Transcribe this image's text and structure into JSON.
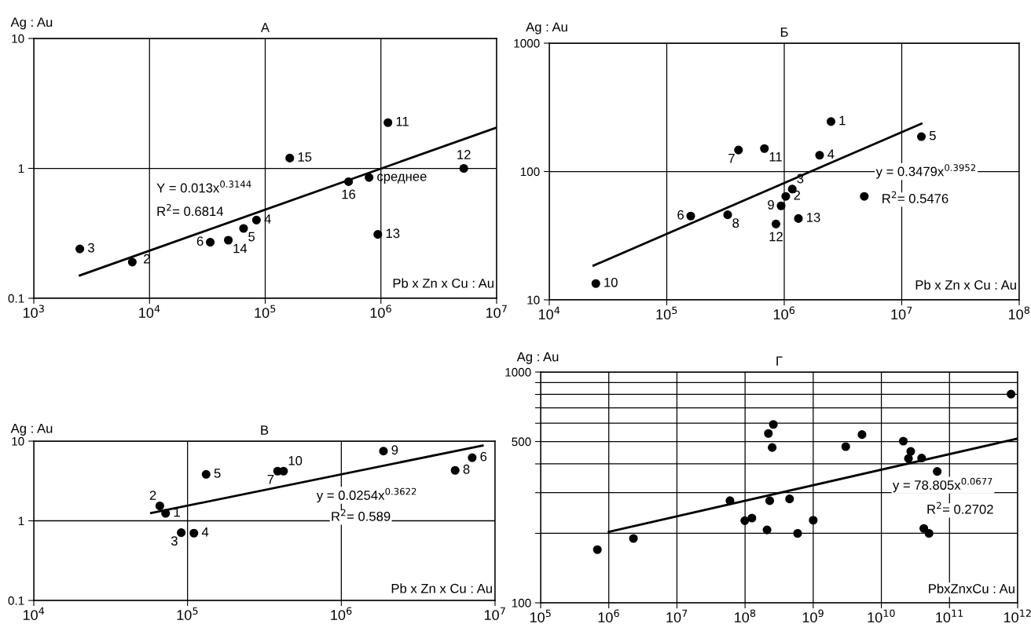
{
  "chart_data": [
    {
      "type": "scatter",
      "title": "А",
      "xlabel": "Pb x Zn x Cu : Au",
      "ylabel": "Ag : Au",
      "log": "xy",
      "grid": true,
      "xlim": [
        1000,
        10000000
      ],
      "xticks": [
        {
          "value": 1000,
          "label": "10$^{3}$"
        },
        {
          "value": 10000,
          "label": "10$^{4}$"
        },
        {
          "value": 100000,
          "label": "10$^{5}$"
        },
        {
          "value": 1000000,
          "label": "10$^{6}$"
        },
        {
          "value": 10000000,
          "label": "10$^{7}$"
        }
      ],
      "ylim": [
        0.1,
        10
      ],
      "yticks": [
        0.1,
        1,
        10
      ],
      "series": [
        {
          "type": "scatter",
          "marker": "circle",
          "color": "#000000",
          "x": [
            2500,
            7100,
            33500,
            48000,
            65000,
            84000,
            163000,
            525000,
            790000,
            940000,
            1150000,
            5200000
          ],
          "values": [
            0.24,
            0.19,
            0.27,
            0.28,
            0.345,
            0.4,
            1.2,
            0.79,
            0.85,
            0.31,
            2.25,
            1.0
          ]
        },
        {
          "type": "line",
          "color": "#000000",
          "x": [
            2500,
            10000000
          ],
          "values": [
            0.15,
            2.06
          ]
        }
      ],
      "annotations": [
        {
          "text": "3",
          "x": 2500,
          "y": 0.24
        },
        {
          "text": "2",
          "x": 7100,
          "y": 0.19
        },
        {
          "text": "6",
          "x": 33500,
          "y": 0.27
        },
        {
          "text": "14",
          "x": 48000,
          "y": 0.28
        },
        {
          "text": "5",
          "x": 65000,
          "y": 0.345
        },
        {
          "text": "4",
          "x": 84000,
          "y": 0.4
        },
        {
          "text": "15",
          "x": 163000,
          "y": 1.2
        },
        {
          "text": "16",
          "x": 525000,
          "y": 0.79
        },
        {
          "text": "среднее",
          "x": 790000,
          "y": 0.85
        },
        {
          "text": "13",
          "x": 940000,
          "y": 0.31
        },
        {
          "text": "11",
          "x": 1150000,
          "y": 2.25
        },
        {
          "text": "12",
          "x": 5200000,
          "y": 1.0
        },
        "Y = 0.013x$^{0.3144}$",
        "R$^{2}$= 0.6814"
      ]
    },
    {
      "type": "scatter",
      "title": "Б",
      "xlabel": "Pb x Zn x Cu : Au",
      "ylabel": "Ag : Au",
      "log": "xy",
      "grid": true,
      "xlim": [
        10000,
        100000000
      ],
      "xticks": [
        {
          "value": 10000,
          "label": "10$^{4}$"
        },
        {
          "value": 100000,
          "label": "10$^{5}$"
        },
        {
          "value": 1000000,
          "label": "10$^{6}$"
        },
        {
          "value": 10000000,
          "label": "10$^{7}$"
        },
        {
          "value": 100000000,
          "label": "10$^{8}$"
        }
      ],
      "ylim": [
        10,
        1000
      ],
      "yticks": [
        10,
        100,
        1000
      ],
      "series": [
        {
          "type": "scatter",
          "marker": "circle",
          "color": "#000000",
          "x": [
            2500000,
            14700000,
            408000,
            678000,
            2000000,
            1170000,
            4800000,
            1030000,
            940000,
            160000,
            330000,
            850000,
            1320000,
            24900
          ],
          "values": [
            245,
            187,
            147,
            151,
            134,
            73,
            64,
            64,
            54,
            45,
            46,
            39,
            43,
            13.4
          ]
        },
        {
          "type": "line",
          "color": "#000000",
          "x": [
            23800,
            14700000
          ],
          "values": [
            18.5,
            236
          ]
        }
      ],
      "annotations": [
        {
          "text": "1",
          "x": 2500000,
          "y": 245
        },
        {
          "text": "5",
          "x": 14700000,
          "y": 187
        },
        {
          "text": "7",
          "x": 408000,
          "y": 147
        },
        {
          "text": "11",
          "x": 678000,
          "y": 151
        },
        {
          "text": "4",
          "x": 2000000,
          "y": 134
        },
        {
          "text": "3",
          "x": 1170000,
          "y": 73
        },
        {
          "text": "2",
          "x": 1030000,
          "y": 64
        },
        {
          "text": "9",
          "x": 940000,
          "y": 54
        },
        {
          "text": "6",
          "x": 160000,
          "y": 45
        },
        {
          "text": "8",
          "x": 330000,
          "y": 46
        },
        {
          "text": "12",
          "x": 850000,
          "y": 39
        },
        {
          "text": "13",
          "x": 1320000,
          "y": 43
        },
        {
          "text": "10",
          "x": 24900,
          "y": 13.4
        },
        "y = 0.3479x$^{0.3952}$",
        "R$^{2}$= 0.5476"
      ]
    },
    {
      "type": "scatter",
      "title": "В",
      "xlabel": "Pb x Zn x Cu : Au",
      "ylabel": "Ag : Au",
      "log": "xy",
      "grid": true,
      "xlim": [
        10000,
        10000000
      ],
      "xticks": [
        {
          "value": 10000,
          "label": "10$^{4}$"
        },
        {
          "value": 100000,
          "label": "10$^{5}$"
        },
        {
          "value": 1000000,
          "label": "10$^{6}$"
        },
        {
          "value": 10000000,
          "label": "10$^{7}$"
        }
      ],
      "ylim": [
        0.1,
        10
      ],
      "yticks": [
        0.1,
        1,
        10
      ],
      "series": [
        {
          "type": "scatter",
          "marker": "circle",
          "color": "#000000",
          "x": [
            66000,
            72000,
            91000,
            110000,
            132000,
            385000,
            421000,
            1880000,
            5500000,
            7100000
          ],
          "values": [
            1.54,
            1.24,
            0.71,
            0.7,
            3.83,
            4.2,
            4.2,
            7.5,
            4.3,
            6.2
          ]
        },
        {
          "type": "line",
          "color": "#000000",
          "x": [
            58000,
            8300000
          ],
          "values": [
            1.25,
            8.8
          ]
        }
      ],
      "annotations": [
        {
          "text": "2",
          "x": 66000,
          "y": 1.54
        },
        {
          "text": "1",
          "x": 72000,
          "y": 1.24
        },
        {
          "text": "3",
          "x": 91000,
          "y": 0.71
        },
        {
          "text": "4",
          "x": 110000,
          "y": 0.7
        },
        {
          "text": "5",
          "x": 132000,
          "y": 3.83
        },
        {
          "text": "7",
          "x": 385000,
          "y": 4.2
        },
        {
          "text": "10",
          "x": 421000,
          "y": 4.2
        },
        {
          "text": "9",
          "x": 1880000,
          "y": 7.5
        },
        {
          "text": "8",
          "x": 5500000,
          "y": 4.3
        },
        {
          "text": "6",
          "x": 7100000,
          "y": 6.2
        },
        "y = 0.0254x$^{0.3622}$",
        "R$^{2}$= 0.589"
      ]
    },
    {
      "type": "scatter",
      "title": "Г",
      "xlabel": "PbxZnxCu : Au",
      "ylabel": "Ag : Au",
      "log": "xy",
      "grid": true,
      "xlim": [
        100000,
        1000000000000
      ],
      "xticks": [
        {
          "value": 100000,
          "label": "10$^{5}$"
        },
        {
          "value": 1000000,
          "label": "10$^{6}$"
        },
        {
          "value": 10000000,
          "label": "10$^{7}$"
        },
        {
          "value": 100000000,
          "label": "10$^{8}$"
        },
        {
          "value": 1000000000,
          "label": "10$^{9}$"
        },
        {
          "value": 10000000000,
          "label": "10$^{10}$"
        },
        {
          "value": 100000000000,
          "label": "10$^{11}$"
        },
        {
          "value": 1000000000000,
          "label": "10$^{12}$"
        }
      ],
      "ylim": [
        100,
        1000
      ],
      "yticks": [
        100,
        {
          "value": 200,
          "label": null
        },
        {
          "value": 300,
          "label": null
        },
        {
          "value": 400,
          "label": null
        },
        500,
        {
          "value": 600,
          "label": null
        },
        {
          "value": 700,
          "label": null
        },
        {
          "value": 800,
          "label": null
        },
        {
          "value": 900,
          "label": null
        },
        1000
      ],
      "series": [
        {
          "type": "scatter",
          "marker": "circle",
          "color": "#000000",
          "x": [
            680000,
            2300000,
            60000000,
            99000000,
            126000000,
            210000000,
            230000000,
            220000000,
            260000000,
            250000000,
            450000000,
            590000000,
            1000000000,
            3000000000,
            5200000000,
            21000000000,
            27000000000,
            25000000000,
            39000000000,
            66000000000,
            42000000000,
            50000000000,
            800000000000
          ],
          "values": [
            170,
            190,
            277,
            227,
            233,
            207,
            277,
            542,
            593,
            471,
            282,
            200,
            228,
            475,
            536,
            502,
            453,
            422,
            424,
            371,
            210,
            200,
            802
          ]
        },
        {
          "type": "line",
          "color": "#000000",
          "x": [
            1000000,
            1000000000000
          ],
          "values": [
            203,
            515
          ]
        }
      ],
      "annotations": [
        "y = 78.805x$^{0.0677}$",
        "R$^{2}$= 0.2702"
      ]
    }
  ]
}
